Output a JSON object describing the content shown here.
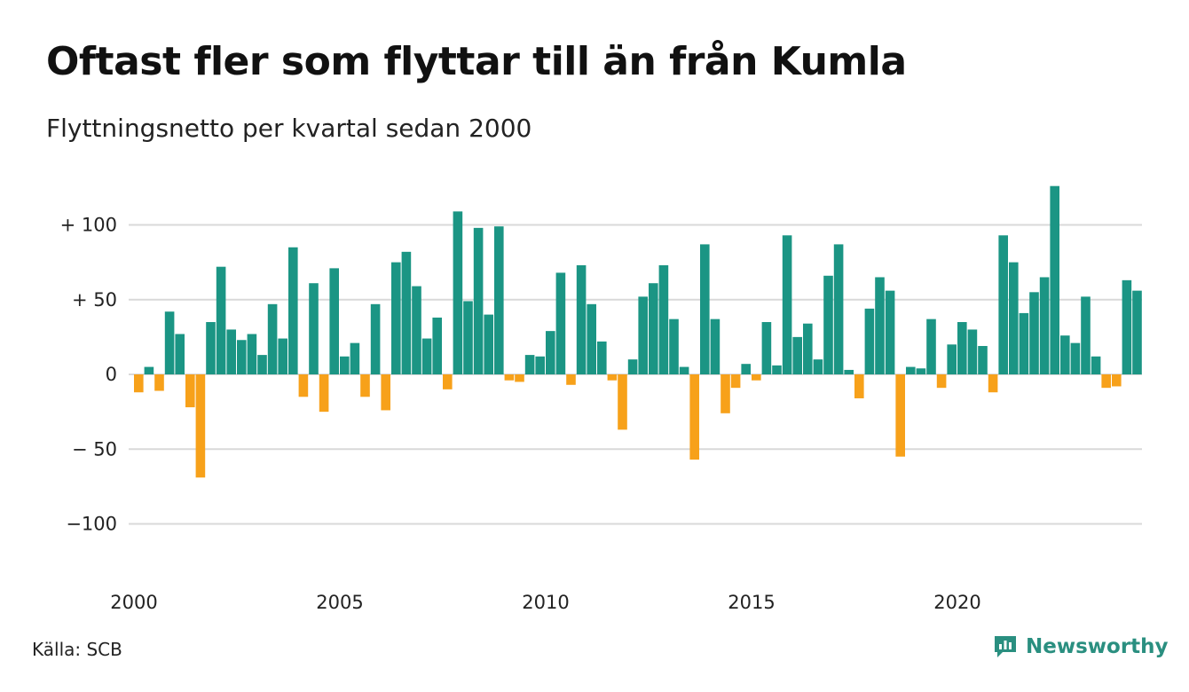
{
  "header": {
    "title": "Oftast fler som flyttar till än från Kumla",
    "subtitle": "Flyttningsnetto per kvartal sedan 2000"
  },
  "footer": {
    "source": "Källa: SCB",
    "brand": "Newsworthy"
  },
  "colors": {
    "positive": "#1b9584",
    "negative": "#f7a11a",
    "grid": "#d9d9d9",
    "brand": "#2a8f80"
  },
  "icons": {
    "brand_logo": "newsworthy-chart-icon"
  },
  "chart_data": {
    "type": "bar",
    "title": "Oftast fler som flyttar till än från Kumla",
    "subtitle": "Flyttningsnetto per kvartal sedan 2000",
    "xlabel": "",
    "ylabel": "",
    "ylim": [
      -125,
      128
    ],
    "grid": true,
    "legend": "none",
    "x_ticks": [
      "2000",
      "2005",
      "2010",
      "2015",
      "2020"
    ],
    "y_ticks": [
      {
        "value": 100,
        "label": "+ 100"
      },
      {
        "value": 50,
        "label": "+  50"
      },
      {
        "value": 0,
        "label": "0"
      },
      {
        "value": -50,
        "label": "− 50"
      },
      {
        "value": -100,
        "label": "−100"
      }
    ],
    "start": "2000 Q1",
    "values": [
      -12,
      5,
      -11,
      42,
      27,
      -22,
      -69,
      35,
      72,
      30,
      23,
      27,
      13,
      47,
      24,
      85,
      -15,
      61,
      -25,
      71,
      12,
      21,
      -15,
      47,
      -24,
      75,
      82,
      59,
      24,
      38,
      -10,
      109,
      49,
      98,
      40,
      99,
      -4,
      -5,
      13,
      12,
      29,
      68,
      -7,
      73,
      47,
      22,
      -4,
      -37,
      10,
      52,
      61,
      73,
      37,
      5,
      -57,
      87,
      37,
      -26,
      -9,
      7,
      -4,
      35,
      6,
      93,
      25,
      34,
      10,
      66,
      87,
      3,
      -16,
      44,
      65,
      56,
      -55,
      5,
      4,
      37,
      -9,
      20,
      35,
      30,
      19,
      -12,
      93,
      75,
      41,
      55,
      65,
      126,
      26,
      21,
      52,
      12,
      -9,
      -8,
      63,
      56
    ]
  }
}
